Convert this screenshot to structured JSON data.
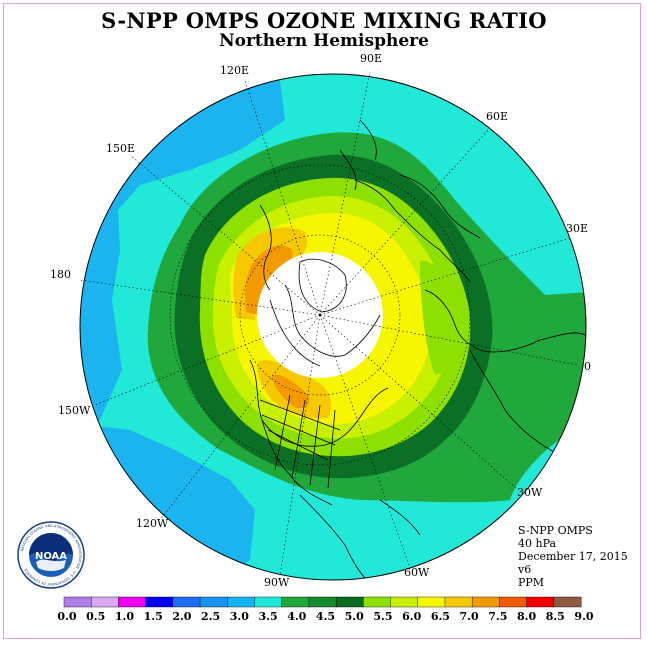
{
  "header": {
    "title": "S-NPP OMPS OZONE MIXING RATIO",
    "subtitle": "Northern Hemisphere"
  },
  "map": {
    "projection": "north-polar-stereographic",
    "longitude_labels": [
      "90E",
      "60E",
      "30E",
      "0",
      "30W",
      "60W",
      "90W",
      "120W",
      "150W",
      "180",
      "150E",
      "120E"
    ],
    "missing_data_region": "polar night (no data)",
    "land_outline_color": "#000000"
  },
  "info_box": {
    "lines": [
      "S-NPP OMPS",
      "40 hPa",
      "December 17, 2015",
      "v6",
      "PPM"
    ]
  },
  "logo": {
    "center_text": "NOAA",
    "ring_text": "NATIONAL OCEANIC AND ATMOSPHERIC ADMINISTRATION · U.S. DEPARTMENT OF COMMERCE",
    "icon": "noaa-seal-icon"
  },
  "colorbar": {
    "ticks": [
      "0.0",
      "0.5",
      "1.0",
      "1.5",
      "2.0",
      "2.5",
      "3.0",
      "3.5",
      "4.0",
      "4.5",
      "5.0",
      "5.5",
      "6.0",
      "6.5",
      "7.0",
      "7.5",
      "8.0",
      "8.5",
      "9.0"
    ],
    "colors": [
      "#b07ee8",
      "#d8a8f0",
      "#ee00ee",
      "#0000ee",
      "#1c6ef0",
      "#1a92f4",
      "#14b4f4",
      "#1ee6d8",
      "#22a83a",
      "#178a30",
      "#0a6a22",
      "#8ee000",
      "#c8f000",
      "#f6f600",
      "#f6c800",
      "#f29a00",
      "#f05a00",
      "#f00000",
      "#8c5a40"
    ]
  }
}
